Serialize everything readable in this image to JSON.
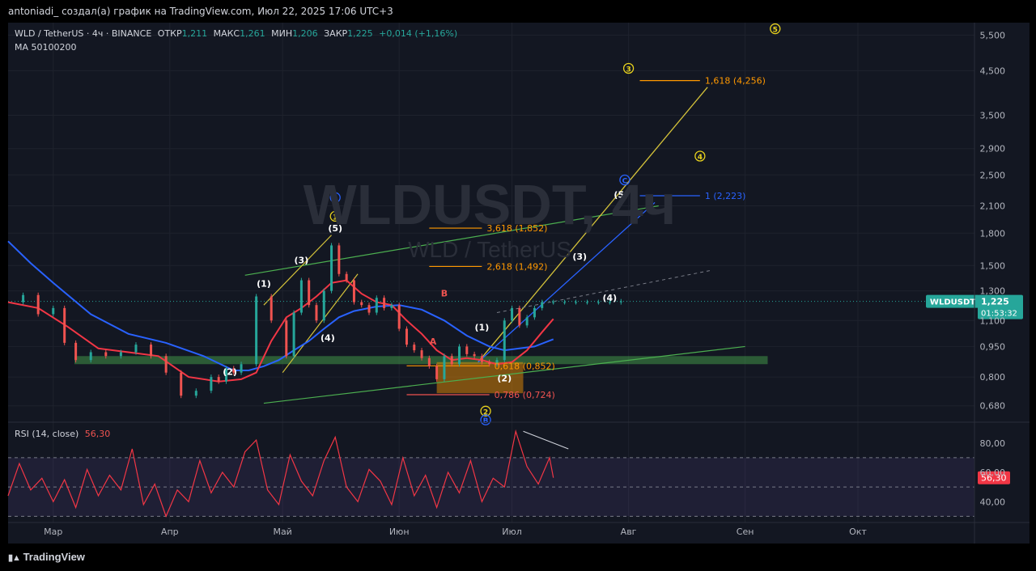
{
  "header": {
    "caption": "antoniadi_ создал(а) график на TradingView.com, Июл 22, 2025 17:06 UTC+3"
  },
  "footer": {
    "brand": "TradingView"
  },
  "legend": {
    "symbol": "WLD / TetherUS · 4ч · BINANCE",
    "open_label": "ОТКР",
    "open": "1,211",
    "high_label": "МАКС",
    "high": "1,261",
    "low_label": "МИН",
    "low": "1,206",
    "close_label": "ЗАКР",
    "close": "1,225",
    "change": "+0,014 (+1,16%)",
    "ma": "MA 50100200"
  },
  "watermark": {
    "ticker": "WLDUSDT, 4ч",
    "name": "WLD / TetherUS"
  },
  "price_tag": {
    "symbol": "WLDUSDT",
    "price": "1,225",
    "countdown": "01:53:32"
  },
  "rsi": {
    "label": "RSI (14, close)",
    "value": "56,30"
  },
  "colors": {
    "background": "#131722",
    "up": "#26a69a",
    "down": "#ef5350",
    "ma_fast": "#f23645",
    "ma_slow": "#2962ff",
    "fib": "#ff9800",
    "rsi_line": "#f23645"
  },
  "chart_data": {
    "type": "line",
    "title": "WLD / TetherUS · 4ч · BINANCE",
    "scale": "log",
    "ylim": [
      0.62,
      5.9
    ],
    "price_ticks": [
      "5,500",
      "4,500",
      "3,500",
      "2,900",
      "2,500",
      "2,100",
      "1,800",
      "1,500",
      "1,300",
      "1,100",
      "0,950",
      "0,800",
      "0,680"
    ],
    "price_tick_values": [
      5.5,
      4.5,
      3.5,
      2.9,
      2.5,
      2.1,
      1.8,
      1.5,
      1.3,
      1.1,
      0.95,
      0.8,
      0.68
    ],
    "x_ticks": [
      "Мар",
      "Апр",
      "Май",
      "Июн",
      "Июл",
      "Авг",
      "Сен",
      "Окт"
    ],
    "x_tick_days": [
      0,
      31,
      61,
      92,
      122,
      153,
      184,
      214
    ],
    "x_start": "2025-03-01",
    "xlim_days": [
      -12,
      245
    ],
    "price_series": {
      "name": "WLDUSDT",
      "days": [
        -12,
        -8,
        -4,
        0,
        3,
        6,
        10,
        14,
        18,
        22,
        26,
        30,
        34,
        38,
        42,
        44,
        46,
        48,
        50,
        54,
        58,
        62,
        64,
        66,
        68,
        70,
        72,
        74,
        76,
        78,
        80,
        82,
        84,
        86,
        88,
        90,
        92,
        94,
        96,
        98,
        100,
        102,
        104,
        106,
        108,
        110,
        112,
        114,
        116,
        118,
        120,
        122,
        124,
        126,
        128,
        130,
        133,
        136,
        139,
        142,
        145,
        148,
        151
      ],
      "close": [
        1.22,
        1.27,
        1.14,
        1.18,
        0.97,
        0.88,
        0.92,
        0.9,
        0.92,
        0.96,
        0.9,
        0.82,
        0.72,
        0.74,
        0.8,
        0.78,
        0.84,
        0.82,
        0.86,
        1.26,
        1.1,
        0.9,
        1.15,
        1.38,
        1.2,
        1.1,
        1.3,
        1.68,
        1.43,
        1.38,
        1.22,
        1.2,
        1.15,
        1.25,
        1.18,
        1.2,
        1.05,
        0.96,
        0.93,
        0.89,
        0.85,
        0.79,
        0.9,
        0.86,
        0.95,
        0.91,
        0.9,
        0.87,
        0.86,
        0.88,
        1.1,
        1.18,
        1.07,
        1.12,
        1.18,
        1.22,
        1.22,
        1.22,
        1.22,
        1.22,
        1.22,
        1.22,
        1.225
      ]
    },
    "ma_fast": {
      "days": [
        -12,
        -4,
        4,
        12,
        20,
        28,
        36,
        44,
        50,
        54,
        58,
        62,
        66,
        70,
        74,
        78,
        82,
        86,
        90,
        94,
        98,
        102,
        106,
        110,
        114,
        118,
        122,
        126,
        130,
        133
      ],
      "values": [
        1.22,
        1.18,
        1.06,
        0.94,
        0.92,
        0.9,
        0.8,
        0.78,
        0.79,
        0.82,
        0.98,
        1.12,
        1.18,
        1.26,
        1.36,
        1.38,
        1.28,
        1.22,
        1.2,
        1.1,
        1.02,
        0.93,
        0.88,
        0.89,
        0.88,
        0.86,
        0.87,
        0.93,
        1.03,
        1.11
      ]
    },
    "ma_slow": {
      "days": [
        -12,
        -6,
        0,
        10,
        20,
        30,
        40,
        48,
        52,
        56,
        60,
        64,
        68,
        72,
        76,
        80,
        86,
        92,
        98,
        104,
        110,
        116,
        120,
        124,
        128,
        133
      ],
      "values": [
        1.72,
        1.52,
        1.36,
        1.14,
        1.02,
        0.97,
        0.9,
        0.83,
        0.83,
        0.85,
        0.88,
        0.93,
        0.98,
        1.05,
        1.12,
        1.16,
        1.19,
        1.2,
        1.17,
        1.1,
        1.01,
        0.95,
        0.93,
        0.94,
        0.95,
        0.99
      ]
    },
    "rsi_series": {
      "days": [
        -12,
        -9,
        -6,
        -3,
        0,
        3,
        6,
        9,
        12,
        15,
        18,
        21,
        24,
        27,
        30,
        33,
        36,
        39,
        42,
        45,
        48,
        51,
        54,
        57,
        60,
        63,
        66,
        69,
        72,
        75,
        78,
        81,
        84,
        87,
        90,
        93,
        96,
        99,
        102,
        105,
        108,
        111,
        114,
        117,
        120,
        123,
        126,
        129,
        132,
        133
      ],
      "values": [
        44,
        66,
        48,
        56,
        40,
        55,
        36,
        62,
        44,
        58,
        48,
        76,
        38,
        52,
        30,
        48,
        40,
        68,
        46,
        60,
        50,
        74,
        82,
        48,
        38,
        72,
        54,
        44,
        68,
        84,
        50,
        40,
        62,
        54,
        38,
        70,
        44,
        58,
        36,
        60,
        46,
        68,
        40,
        56,
        50,
        88,
        64,
        52,
        70,
        56.3
      ]
    },
    "rsi_ylim": [
      28,
      92
    ],
    "rsi_ticks": [
      "80,00",
      "60,00",
      "40,00"
    ],
    "rsi_tick_values": [
      80,
      60,
      40
    ],
    "rsi_band": [
      30,
      70
    ],
    "fib_levels": [
      {
        "label": "3,618 (1,852)",
        "value": 1.852
      },
      {
        "label": "2,618 (1,492)",
        "value": 1.492
      },
      {
        "label": "0,618 (0,852)",
        "value": 0.852
      },
      {
        "label": "0,786 (0,724)",
        "value": 0.724
      },
      {
        "label": "1,618 (4,256)",
        "value": 4.256
      },
      {
        "label": "1 (2,223)",
        "value": 2.223
      }
    ],
    "wave_labels": [
      {
        "text": "(1)",
        "day": 56,
        "price": 1.33
      },
      {
        "text": "(2)",
        "day": 47,
        "price": 0.81
      },
      {
        "text": "(3)",
        "day": 66,
        "price": 1.52
      },
      {
        "text": "(4)",
        "day": 73,
        "price": 0.98
      },
      {
        "text": "(5)",
        "day": 75,
        "price": 1.82
      },
      {
        "text": "A",
        "day": 101,
        "price": 0.96
      },
      {
        "text": "B",
        "day": 104,
        "price": 1.26
      },
      {
        "text": "(1)",
        "day": 114,
        "price": 1.04
      },
      {
        "text": "(2)",
        "day": 120,
        "price": 0.78
      },
      {
        "text": "(3)",
        "day": 140,
        "price": 1.55
      },
      {
        "text": "(4)",
        "day": 148,
        "price": 1.23
      },
      {
        "text": "(5)",
        "day": 151,
        "price": 2.2
      }
    ],
    "circle_labels": [
      {
        "text": "A",
        "day": 75,
        "price": 2.2,
        "color": "#2962ff"
      },
      {
        "text": "1",
        "day": 75,
        "price": 1.98,
        "color": "#e8d21d"
      },
      {
        "text": "2",
        "day": 115,
        "price": 0.66,
        "color": "#e8d21d"
      },
      {
        "text": "B",
        "day": 115,
        "price": 0.628,
        "color": "#2962ff"
      },
      {
        "text": "C",
        "day": 152,
        "price": 2.43,
        "color": "#2962ff"
      },
      {
        "text": "3",
        "day": 153,
        "price": 4.56,
        "color": "#e8d21d"
      },
      {
        "text": "4",
        "day": 172,
        "price": 2.78,
        "color": "#e8d21d"
      },
      {
        "text": "5",
        "day": 192,
        "price": 5.7,
        "color": "#e8d21d"
      }
    ]
  }
}
